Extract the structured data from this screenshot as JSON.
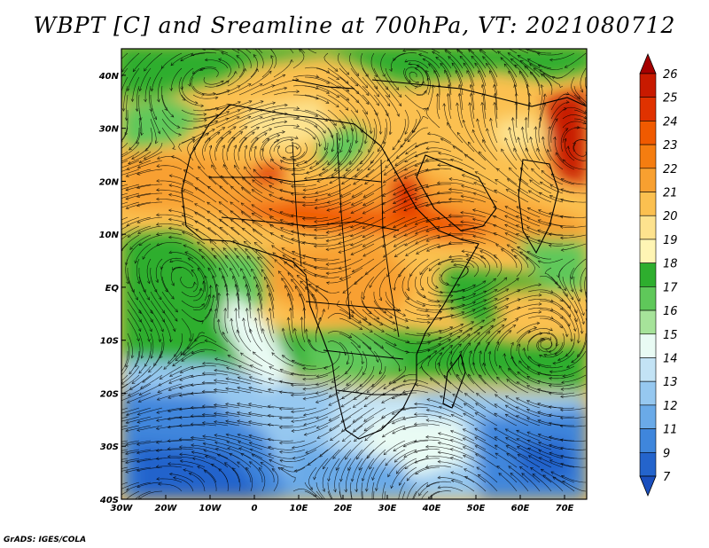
{
  "title": "WBPT [C] and Sreamline at 700hPa, VT: 2021080712",
  "credit": "GrADS: IGES/COLA",
  "map": {
    "projection": "latlon",
    "lon_range": [
      -30,
      75
    ],
    "lat_range": [
      -40,
      45
    ],
    "lon_ticks": [
      "30W",
      "20W",
      "10W",
      "0",
      "10E",
      "20E",
      "30E",
      "40E",
      "50E",
      "60E",
      "70E"
    ],
    "lat_ticks": [
      "40N",
      "30N",
      "20N",
      "10N",
      "EQ",
      "10S",
      "20S",
      "30S",
      "40S"
    ],
    "fields": [
      "wet-bulb potential temperature (shaded)",
      "streamlines"
    ]
  },
  "colorbar": {
    "labels": [
      "26",
      "25",
      "24",
      "23",
      "22",
      "21",
      "20",
      "19",
      "18",
      "17",
      "16",
      "15",
      "14",
      "13",
      "12",
      "11",
      "9",
      "7"
    ],
    "colors": [
      "#a50000",
      "#c81a00",
      "#e03200",
      "#f05a00",
      "#f57d10",
      "#f8a030",
      "#fbc050",
      "#fde28e",
      "#fff5b4",
      "#2eae2e",
      "#5fc85a",
      "#a6e39a",
      "#e9fbf4",
      "#c3e3f5",
      "#96c8f0",
      "#6aaae8",
      "#3f86dc",
      "#2464cc",
      "#1a4fbe"
    ]
  }
}
